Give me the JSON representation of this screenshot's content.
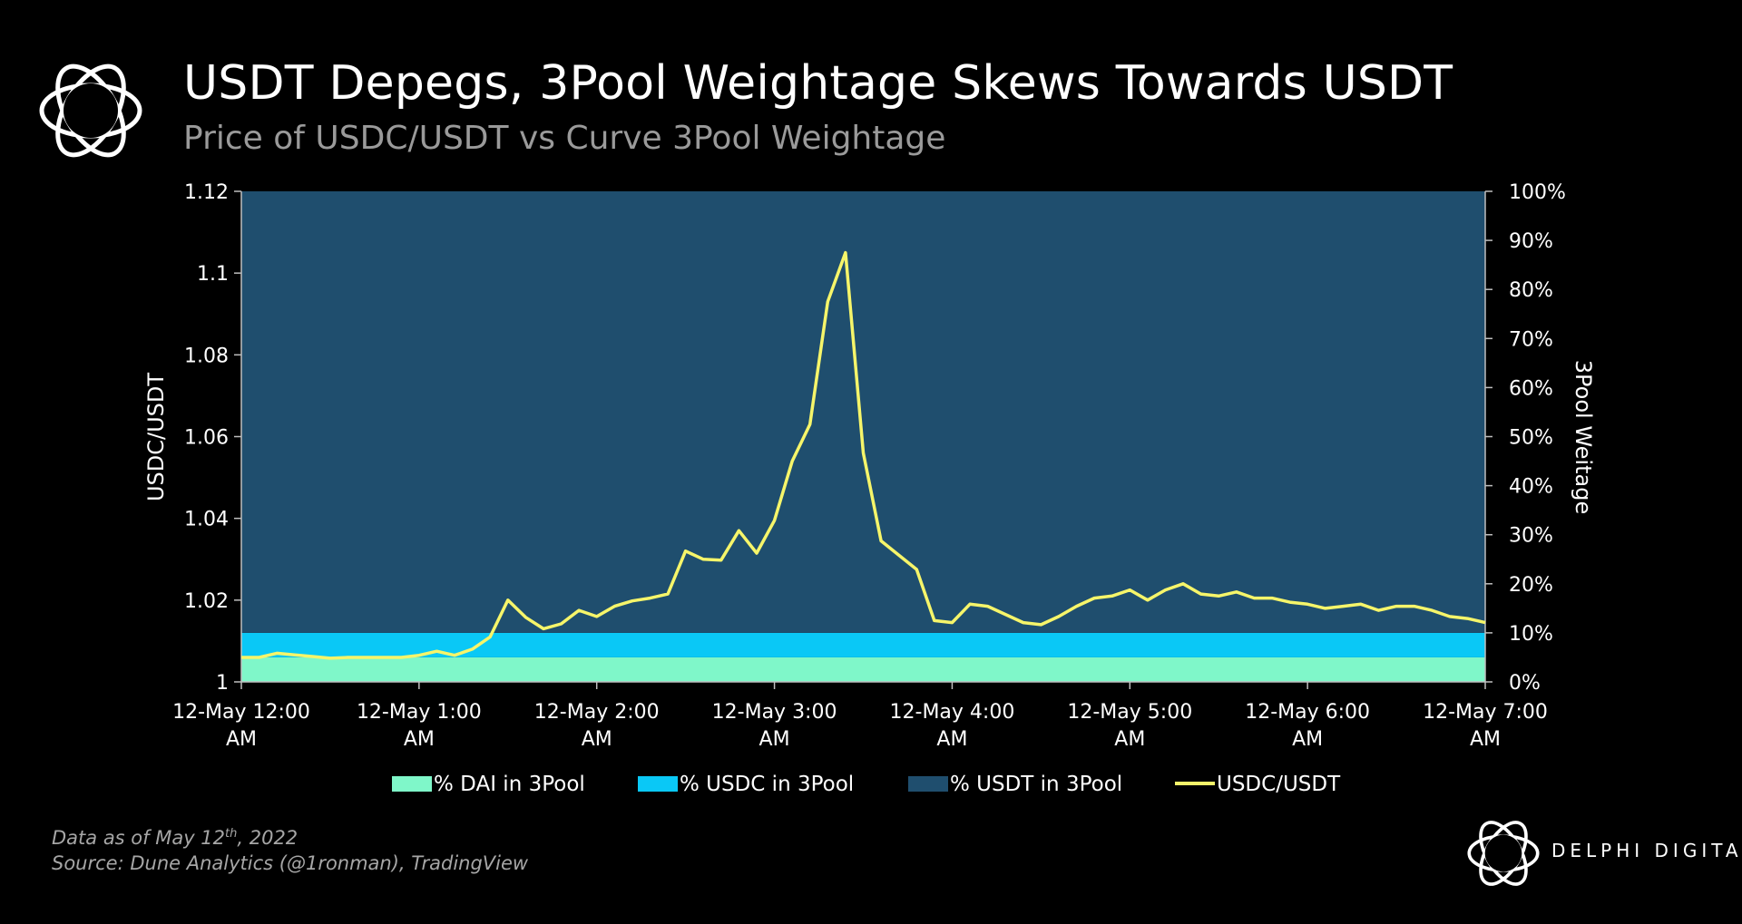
{
  "header": {
    "title": "USDT Depegs, 3Pool Weightage Skews Towards USDT",
    "subtitle": "Price of USDC/USDT vs Curve 3Pool Weightage",
    "logo_icon": "delphi-flower-logo-icon"
  },
  "chart_data": {
    "type": "area+line",
    "title": "USDT Depegs, 3Pool Weightage Skews Towards USDT",
    "subtitle": "Price of USDC/USDT vs Curve 3Pool Weightage",
    "ylabel_left": "USDC/USDT",
    "ylabel_right": "3Pool Weitage",
    "ylim_left": [
      1,
      1.12
    ],
    "ylim_right": [
      0,
      100
    ],
    "yticks_left": [
      "1",
      "1.02",
      "1.04",
      "1.06",
      "1.08",
      "1.1",
      "1.12"
    ],
    "yticks_right": [
      "0%",
      "10%",
      "20%",
      "30%",
      "40%",
      "50%",
      "60%",
      "70%",
      "80%",
      "90%",
      "100%"
    ],
    "x_ticks": [
      [
        "12-May 12:00",
        "AM"
      ],
      [
        "12-May 1:00",
        "AM"
      ],
      [
        "12-May 2:00",
        "AM"
      ],
      [
        "12-May 3:00",
        "AM"
      ],
      [
        "12-May 4:00",
        "AM"
      ],
      [
        "12-May 5:00",
        "AM"
      ],
      [
        "12-May 6:00",
        "AM"
      ],
      [
        "12-May 7:00",
        "AM"
      ]
    ],
    "x_range_hours": [
      0,
      7
    ],
    "series": [
      {
        "name": "% DAI in 3Pool",
        "type": "area",
        "color": "#7ff7c9",
        "value_pct": 5
      },
      {
        "name": "% USDC in 3Pool",
        "type": "area",
        "color": "#0ac8f6",
        "value_pct": 5
      },
      {
        "name": "% USDT in 3Pool",
        "type": "area",
        "color": "#1f4e6e",
        "value_pct": 90
      },
      {
        "name": "USDC/USDT",
        "type": "line",
        "color": "#f6f56a",
        "x_hours": [
          0,
          0.1,
          0.2,
          0.3,
          0.4,
          0.5,
          0.6,
          0.7,
          0.8,
          0.9,
          1.0,
          1.1,
          1.2,
          1.3,
          1.4,
          1.5,
          1.6,
          1.7,
          1.8,
          1.9,
          2.0,
          2.1,
          2.2,
          2.3,
          2.4,
          2.5,
          2.6,
          2.7,
          2.8,
          2.9,
          3.0,
          3.1,
          3.2,
          3.3,
          3.4,
          3.5,
          3.6,
          3.7,
          3.8,
          3.9,
          4.0,
          4.1,
          4.2,
          4.3,
          4.4,
          4.5,
          4.6,
          4.7,
          4.8,
          4.9,
          5.0,
          5.1,
          5.2,
          5.3,
          5.4,
          5.5,
          5.6,
          5.7,
          5.8,
          5.9,
          6.0,
          6.1,
          6.2,
          6.3,
          6.4,
          6.5,
          6.6,
          6.7,
          6.8,
          6.9,
          7.0
        ],
        "values": [
          1.006,
          1.006,
          1.007,
          1.0066,
          1.0062,
          1.0058,
          1.006,
          1.006,
          1.006,
          1.006,
          1.0065,
          1.0075,
          1.0065,
          1.008,
          1.011,
          1.02,
          1.0158,
          1.013,
          1.0142,
          1.0175,
          1.016,
          1.0185,
          1.0198,
          1.0205,
          1.0215,
          1.032,
          1.03,
          1.0298,
          1.037,
          1.0315,
          1.0395,
          1.054,
          1.063,
          1.093,
          1.105,
          1.056,
          1.0345,
          1.031,
          1.0275,
          1.015,
          1.0145,
          1.019,
          1.0185,
          1.0165,
          1.0145,
          1.014,
          1.016,
          1.0185,
          1.0205,
          1.021,
          1.0225,
          1.02,
          1.0225,
          1.024,
          1.0215,
          1.021,
          1.022,
          1.0205,
          1.0205,
          1.0195,
          1.019,
          1.018,
          1.0185,
          1.019,
          1.0175,
          1.0185,
          1.0185,
          1.0175,
          1.016,
          1.0155,
          1.0145
        ]
      }
    ],
    "legend_position": "bottom",
    "grid": false
  },
  "footer": {
    "note_prefix": "Data as of May 12",
    "note_sup": "th",
    "note_suffix": ", 2022",
    "source": "Source: Dune Analytics (@1ronman), TradingView",
    "brand_icon": "delphi-flower-logo-icon",
    "brand_name": "DELPHI DIGITAL"
  }
}
